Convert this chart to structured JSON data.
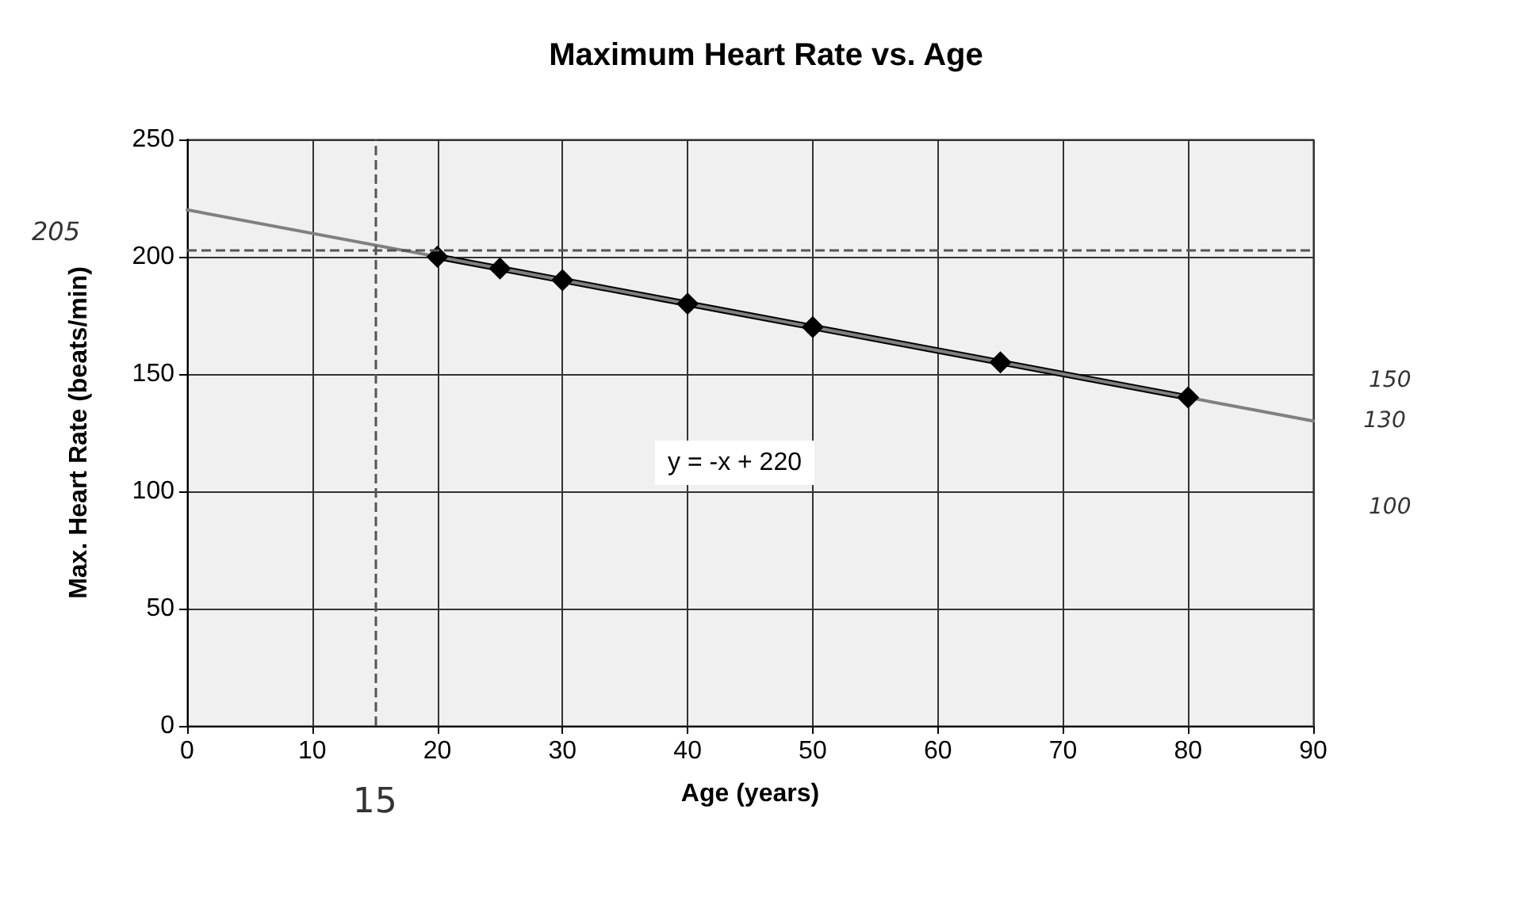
{
  "chart_data": {
    "type": "line",
    "title": "Maximum Heart Rate vs. Age",
    "xlabel": "Age (years)",
    "ylabel": "Max. Heart Rate (beats/min)",
    "series": [
      {
        "x": [
          20,
          25,
          30,
          40,
          50,
          65,
          80
        ],
        "values": [
          200,
          195,
          190,
          180,
          170,
          155,
          140
        ],
        "color": "#000000",
        "marker": "diamond"
      },
      {
        "x": [
          0,
          90
        ],
        "values": [
          220,
          130
        ],
        "color": "#808080",
        "marker": "none"
      }
    ],
    "xlim": [
      0,
      90
    ],
    "xticks": [
      0,
      10,
      20,
      30,
      40,
      50,
      60,
      70,
      80,
      90
    ],
    "ylim": [
      0,
      250
    ],
    "yticks": [
      0,
      50,
      100,
      150,
      200,
      250
    ],
    "grid": true,
    "ref_lines": [
      {
        "axis": "x",
        "value": 15,
        "line_style": "dashed",
        "color": "#555555"
      },
      {
        "axis": "y",
        "value": 203,
        "line_style": "dashed",
        "color": "#555555"
      }
    ],
    "annotations": [
      "y = -x + 220",
      "205",
      {
        "text": "15",
        "x": 15,
        "y": 0
      },
      {
        "text": "130",
        "x": 90,
        "y": 130
      },
      "150",
      "100"
    ]
  }
}
